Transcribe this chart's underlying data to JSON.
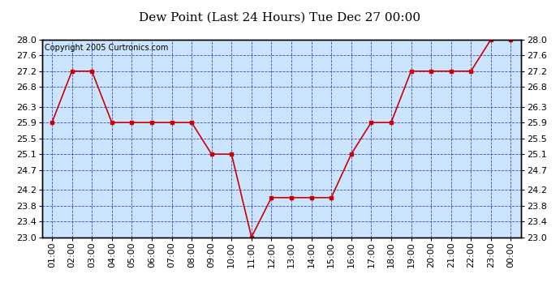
{
  "title": "Dew Point (Last 24 Hours) Tue Dec 27 00:00",
  "copyright": "Copyright 2005 Curtronics.com",
  "x_labels": [
    "01:00",
    "02:00",
    "03:00",
    "04:00",
    "05:00",
    "06:00",
    "07:00",
    "08:00",
    "09:00",
    "10:00",
    "11:00",
    "12:00",
    "13:00",
    "14:00",
    "15:00",
    "16:00",
    "17:00",
    "18:00",
    "19:00",
    "20:00",
    "21:00",
    "22:00",
    "23:00",
    "00:00"
  ],
  "y_values": [
    25.9,
    27.2,
    27.2,
    25.9,
    25.9,
    25.9,
    25.9,
    25.9,
    25.1,
    25.1,
    23.0,
    24.0,
    24.0,
    24.0,
    24.0,
    25.1,
    25.9,
    25.9,
    27.2,
    27.2,
    27.2,
    27.2,
    28.0,
    28.0
  ],
  "ylim_min": 23.0,
  "ylim_max": 28.0,
  "yticks": [
    23.0,
    23.4,
    23.8,
    24.2,
    24.7,
    25.1,
    25.5,
    25.9,
    26.3,
    26.8,
    27.2,
    27.6,
    28.0
  ],
  "line_color": "#cc0000",
  "marker_color": "#cc0000",
  "background_color": "#cce5ff",
  "plot_bg_color": "#cce5ff",
  "fig_bg_color": "#ffffff",
  "grid_color": "#3333cc",
  "border_color": "#000000",
  "title_fontsize": 11,
  "copyright_fontsize": 7,
  "tick_fontsize": 8,
  "ylabel_right_fontsize": 8
}
